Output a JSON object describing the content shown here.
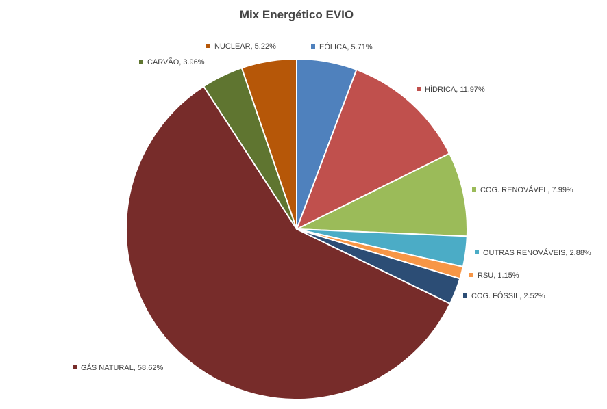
{
  "chart_data": {
    "type": "pie",
    "title": "Mix Energético EVIO",
    "slices": [
      {
        "label": "EÓLICA",
        "value": 5.71,
        "display": "5.71%",
        "color": "#4F81BD"
      },
      {
        "label": "HÍDRICA",
        "value": 11.97,
        "display": "11.97%",
        "color": "#C0504D"
      },
      {
        "label": "COG. RENOVÁVEL",
        "value": 7.99,
        "display": "7.99%",
        "color": "#9BBB59"
      },
      {
        "label": "OUTRAS RENOVÁVEIS",
        "value": 2.88,
        "display": "2.88%",
        "color": "#4BACC6"
      },
      {
        "label": "RSU",
        "value": 1.15,
        "display": "1.15%",
        "color": "#F79646"
      },
      {
        "label": "COG. FÓSSIL",
        "value": 2.52,
        "display": "2.52%",
        "color": "#2C4D75"
      },
      {
        "label": "GÁS NATURAL",
        "value": 58.62,
        "display": "58.62%",
        "color": "#772C2A"
      },
      {
        "label": "CARVÃO",
        "value": 3.96,
        "display": "3.96%",
        "color": "#5F7530"
      },
      {
        "label": "NUCLEAR",
        "value": 5.22,
        "display": "5.22%",
        "color": "#B65708"
      }
    ],
    "legend": "data-labels"
  }
}
